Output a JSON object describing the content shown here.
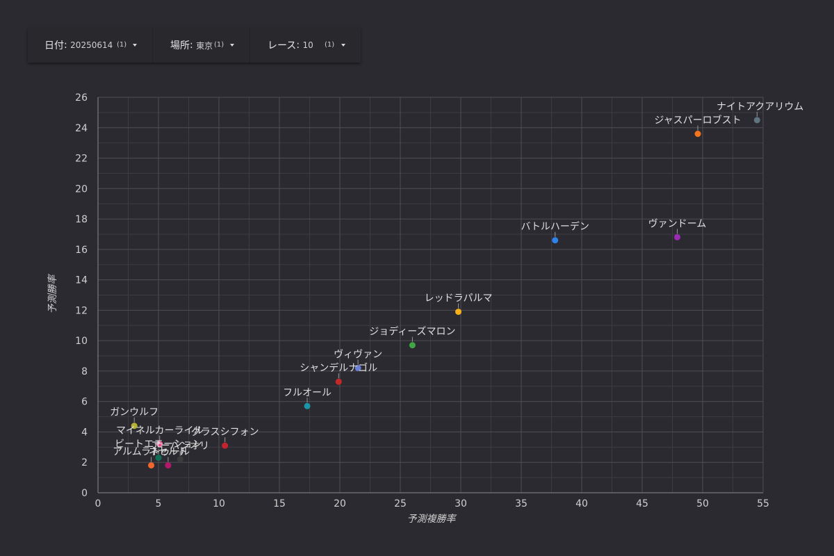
{
  "filters": [
    {
      "label": "日付",
      "value": "20250614",
      "count": "(1)",
      "icon": "caret-down-icon"
    },
    {
      "label": "場所",
      "value": "東京",
      "count": "(1)",
      "icon": "caret-down-icon"
    },
    {
      "label": "レース",
      "value": "10",
      "count": "(1)",
      "icon": "caret-down-icon"
    }
  ],
  "chart_data": {
    "type": "scatter",
    "xlabel": "予測複勝率",
    "ylabel": "予測勝率",
    "xlim": [
      0,
      55
    ],
    "ylim": [
      0,
      26
    ],
    "xticks": [
      0,
      5,
      10,
      15,
      20,
      25,
      30,
      35,
      40,
      45,
      50,
      55
    ],
    "yticks": [
      0,
      2,
      4,
      6,
      8,
      10,
      12,
      14,
      16,
      18,
      20,
      22,
      24,
      26
    ],
    "grid": true,
    "points": [
      {
        "name": "ナイトアクアリウム",
        "x": 54.5,
        "y": 24.5,
        "color": "#5f7480"
      },
      {
        "name": "ジャスパーロブスト",
        "x": 49.6,
        "y": 23.6,
        "color": "#f2741d"
      },
      {
        "name": "ヴァンドーム",
        "x": 47.9,
        "y": 16.8,
        "color": "#9b2bb3"
      },
      {
        "name": "バトルハーデン",
        "x": 37.8,
        "y": 16.6,
        "color": "#2d83e8"
      },
      {
        "name": "レッドラパルマ",
        "x": 29.8,
        "y": 11.9,
        "color": "#f5b01c"
      },
      {
        "name": "ジョディーズマロン",
        "x": 26.0,
        "y": 9.7,
        "color": "#3fa645"
      },
      {
        "name": "ヴィヴァン",
        "x": 21.5,
        "y": 8.2,
        "color": "#6a7fd6"
      },
      {
        "name": "シャンデルナゴル",
        "x": 19.9,
        "y": 7.3,
        "color": "#c62828"
      },
      {
        "name": "フルオール",
        "x": 17.3,
        "y": 5.7,
        "color": "#1b95a5"
      },
      {
        "name": "ガンウルフ",
        "x": 3.0,
        "y": 4.4,
        "color": "#b5b336"
      },
      {
        "name": "マイネルカーライル",
        "x": 5.1,
        "y": 3.2,
        "color": "#ec4d8c"
      },
      {
        "name": "グラスシフォン",
        "x": 10.5,
        "y": 3.1,
        "color": "#c4242e"
      },
      {
        "name": "ビートエモーション",
        "x": 5.0,
        "y": 2.3,
        "color": "#0f6e55"
      },
      {
        "name": "アーバンオリ",
        "x": 6.8,
        "y": 2.2,
        "color": "#3c3c3c"
      },
      {
        "name": "アルムラトゥール",
        "x": 4.4,
        "y": 1.8,
        "color": "#f0662c"
      },
      {
        "name": "ネセルト",
        "x": 5.8,
        "y": 1.8,
        "color": "#b3186a"
      }
    ]
  }
}
